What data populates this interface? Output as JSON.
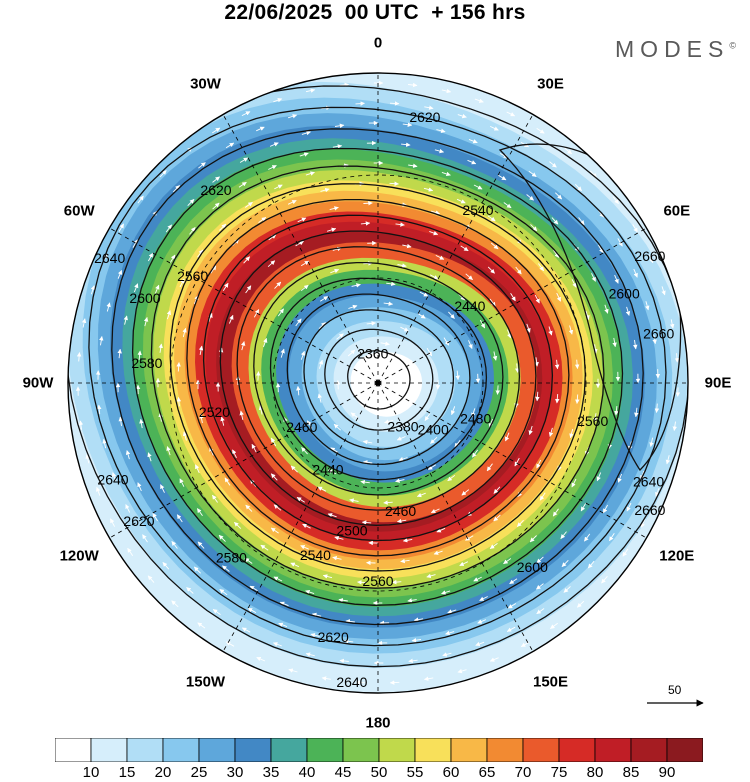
{
  "title": "22/06/2025  00 UTC  + 156 hrs",
  "brand": {
    "text": "MODES",
    "mark": "©"
  },
  "longitude_labels": [
    "0",
    "30E",
    "60E",
    "90E",
    "120E",
    "150E",
    "180",
    "150W",
    "120W",
    "90W",
    "60W",
    "30W"
  ],
  "contour_labels": [
    "2360",
    "2380",
    "2400",
    "2440",
    "2440",
    "2460",
    "2460",
    "2480",
    "2500",
    "2520",
    "2540",
    "2540",
    "2560",
    "2560",
    "2560",
    "2580",
    "2580",
    "2600",
    "2600",
    "2600",
    "2620",
    "2620",
    "2620",
    "2620",
    "2640",
    "2640",
    "2640",
    "2640",
    "2660",
    "2660",
    "2660"
  ],
  "vector_legend": {
    "value": "50"
  },
  "colorbar": {
    "ticks": [
      "10",
      "15",
      "20",
      "25",
      "30",
      "35",
      "40",
      "45",
      "50",
      "55",
      "60",
      "65",
      "70",
      "75",
      "80",
      "85",
      "90"
    ],
    "colors": [
      "#ffffff",
      "#d6eefb",
      "#b1def6",
      "#87c8ee",
      "#5ea7db",
      "#4288c5",
      "#45a79e",
      "#4cb357",
      "#7cc44e",
      "#c0d94b",
      "#f8e05a",
      "#f8b847",
      "#f28a32",
      "#ea5a2c",
      "#d62b26",
      "#c01e26",
      "#a51c22",
      "#8b1a1f"
    ]
  },
  "colors": {
    "land": "#e6e6e6",
    "coast": "#7a7a7a",
    "contour": "#111111",
    "vector": "#ffffff"
  }
}
